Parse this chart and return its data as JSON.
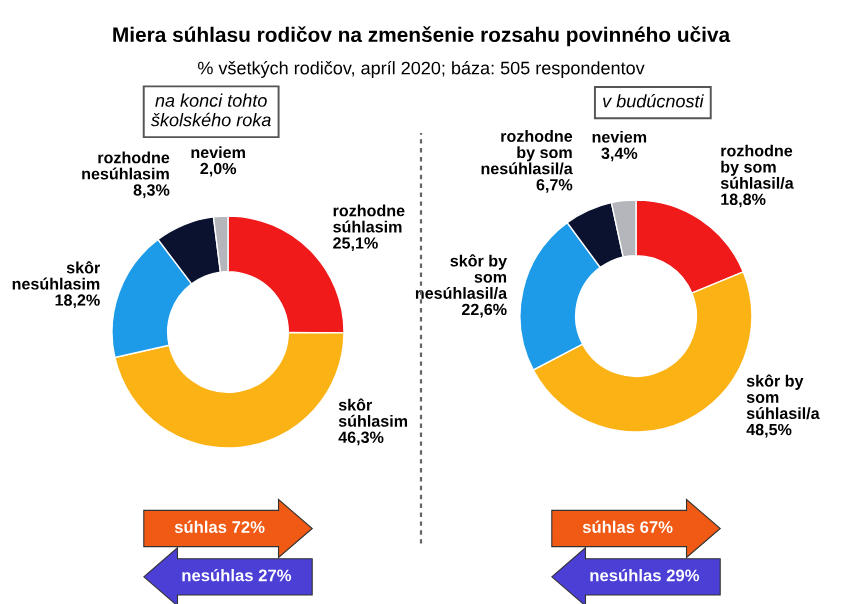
{
  "chart_data": [
    {
      "type": "donut",
      "title": "Miera súhlasu rodičov na zmenšenie rozsahu povinného učiva",
      "subtitle": "% všetkých rodičov, apríl 2020; báza: 505 respondentov",
      "categories": [
        "rozhodne\nsúhlasim",
        "skôr\nsúhlasim",
        "skôr\nnesúhlasim",
        "rozhodne\nnesúhlasim",
        "neviem"
      ],
      "values": [
        25.1,
        46.3,
        18.2,
        8.3,
        2.0
      ],
      "value_labels": [
        "25,1%",
        "46,3%",
        "18,2%",
        "8,3%",
        "2,0%"
      ],
      "colors": [
        "#f01a1a",
        "#fbb215",
        "#1e9be8",
        "#0a1230",
        "#b4b6bc"
      ],
      "annotations": [
        "na konci tohto\nškolského roka",
        "súhlas 72%",
        "nesúhlas 27%"
      ]
    },
    {
      "type": "donut",
      "categories": [
        "rozhodne\nby som\nsúhlasil/a",
        "skôr by\nsom\nsúhlasil/a",
        "skôr by\nsom\nnesúhlasil/a",
        "rozhodne\nby som\nnesúhlasil/a",
        "neviem"
      ],
      "values": [
        18.8,
        48.5,
        22.6,
        6.7,
        3.4
      ],
      "value_labels": [
        "18,8%",
        "48,5%",
        "22,6%",
        "6,7%",
        "3,4%"
      ],
      "colors": [
        "#f01a1a",
        "#fbb215",
        "#1e9be8",
        "#0a1230",
        "#b4b6bc"
      ],
      "annotations": [
        "v budúcnosti",
        "súhlas 67%",
        "nesúhlas 29%"
      ]
    }
  ]
}
